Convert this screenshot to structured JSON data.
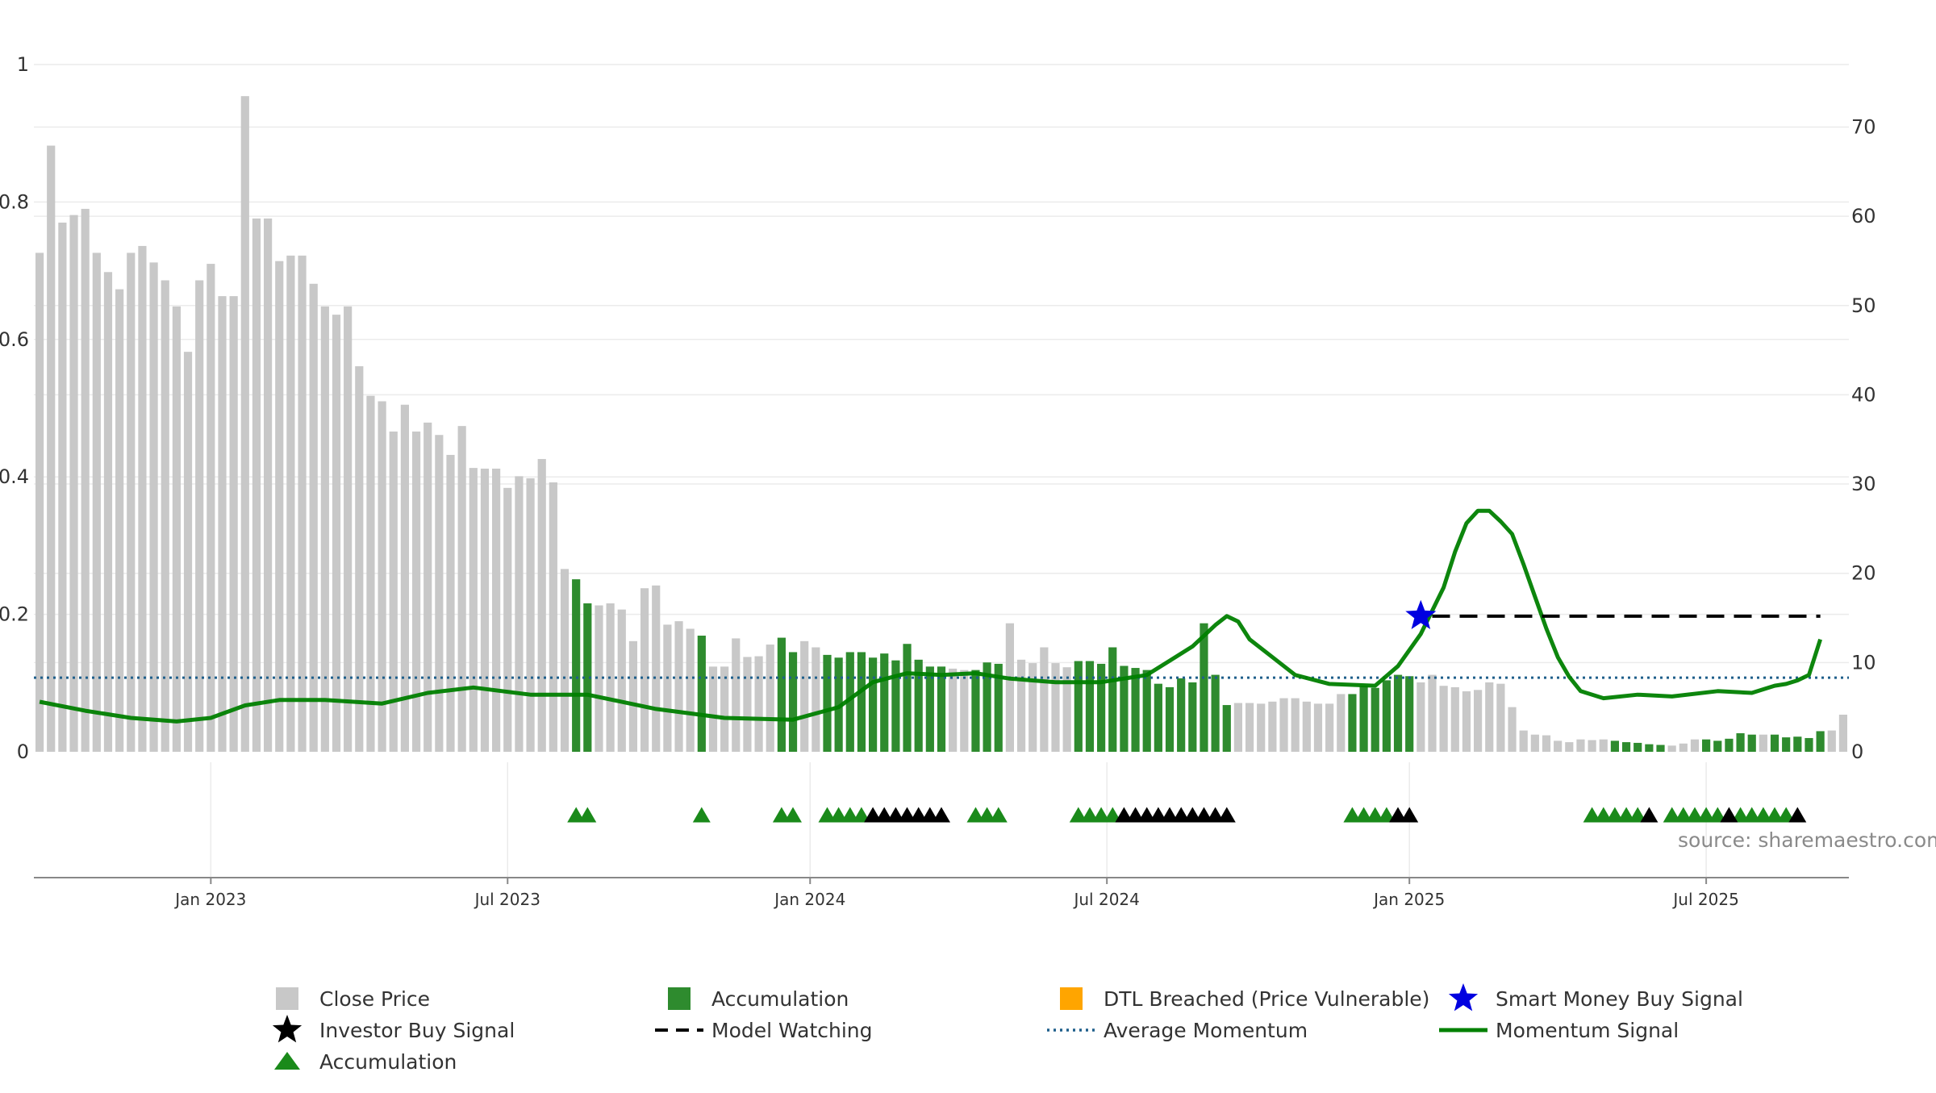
{
  "chart_data": {
    "type": "bar",
    "title": "",
    "xlabel": "",
    "ylabel": "",
    "ylabel_right": "",
    "left_axis": {
      "ticks": [
        "0",
        "0.2",
        "0.4",
        "0.6",
        "0.8",
        "1"
      ],
      "ylim": [
        0,
        1
      ]
    },
    "right_axis": {
      "ticks": [
        "0",
        "10",
        "20",
        "30",
        "40",
        "50",
        "60",
        "70"
      ],
      "ylim": [
        0,
        77
      ]
    },
    "x_axis": {
      "tick_labels": [
        "Jan 2023",
        "Jul 2023",
        "Jan 2024",
        "Jul 2024",
        "Jan 2025",
        "Jul 2025"
      ],
      "tick_index": [
        15,
        41,
        67.5,
        93.5,
        120,
        146
      ]
    },
    "grid": true,
    "legend_placement": "bottom",
    "source": "source: sharemaestro.com",
    "colors": {
      "close_price": "#c8c8c8",
      "accumulation": "#2e8b2e",
      "dtl_breached": "#ffa500",
      "smart_money": "#0000e0",
      "investor_buy": "#000000",
      "model_watching": "#000000",
      "average_momentum": "#1f5f8b",
      "momentum_signal": "#008000"
    },
    "close_price": [
      0.726,
      0.882,
      0.77,
      0.781,
      0.79,
      0.726,
      0.698,
      0.673,
      0.726,
      0.736,
      0.712,
      0.686,
      0.648,
      0.582,
      0.686,
      0.71,
      0.663,
      0.663,
      0.954,
      0.776,
      0.776,
      0.714,
      0.722,
      0.722,
      0.681,
      0.648,
      0.636,
      0.648,
      0.561,
      0.518,
      0.51,
      0.466,
      0.505,
      0.466,
      0.479,
      0.461,
      0.432,
      0.474,
      0.413,
      0.412,
      0.412,
      0.384,
      0.401,
      0.398,
      0.426,
      0.392,
      0.266,
      0.251,
      0.216,
      0.213,
      0.216,
      0.207,
      0.161,
      0.238,
      0.242,
      0.185,
      0.19,
      0.179,
      0.169,
      0.124,
      0.124,
      0.165,
      0.138,
      0.139,
      0.156,
      0.166,
      0.145,
      0.161,
      0.152,
      0.141,
      0.137,
      0.145,
      0.145,
      0.137,
      0.143,
      0.133,
      0.157,
      0.134,
      0.124,
      0.124,
      0.121,
      0.119,
      0.119,
      0.13,
      0.128,
      0.187,
      0.134,
      0.129,
      0.152,
      0.129,
      0.123,
      0.132,
      0.132,
      0.128,
      0.152,
      0.125,
      0.122,
      0.119,
      0.099,
      0.094,
      0.107,
      0.101,
      0.187,
      0.112,
      0.068,
      0.071,
      0.071,
      0.07,
      0.073,
      0.078,
      0.078,
      0.073,
      0.07,
      0.07,
      0.084,
      0.084,
      0.096,
      0.093,
      0.104,
      0.112,
      0.11,
      0.101,
      0.112,
      0.096,
      0.094,
      0.088,
      0.09,
      0.101,
      0.099,
      0.065,
      0.031,
      0.025,
      0.024,
      0.016,
      0.014,
      0.018,
      0.017,
      0.018,
      0.016,
      0.014,
      0.013,
      0.011,
      0.01,
      0.009,
      0.012,
      0.018,
      0.018,
      0.016,
      0.019,
      0.027,
      0.025,
      0.025,
      0.025,
      0.021,
      0.022,
      0.02,
      0.03,
      0.031,
      0.054
    ],
    "accumulation_indices": [
      47,
      48,
      58,
      65,
      66,
      69,
      70,
      71,
      72,
      73,
      74,
      75,
      76,
      77,
      78,
      79,
      82,
      83,
      84,
      91,
      92,
      93,
      94,
      95,
      96,
      97,
      98,
      99,
      100,
      101,
      102,
      103,
      104,
      115,
      116,
      117,
      118,
      119,
      120,
      138,
      139,
      140,
      141,
      142,
      146,
      147,
      148,
      149,
      150,
      152,
      153,
      154,
      155,
      156
    ],
    "average_momentum": 8.3,
    "momentum_signal": {
      "x_index": [
        0,
        4,
        8,
        12,
        15,
        18,
        21,
        25,
        30,
        34,
        38,
        43,
        48,
        54,
        60,
        66,
        70,
        73,
        76,
        79,
        82,
        85,
        89,
        93,
        97,
        99,
        101,
        103,
        104,
        105,
        106,
        108,
        110,
        113,
        117,
        119,
        121,
        123,
        124,
        125,
        126,
        127,
        128,
        129,
        130,
        131,
        132,
        133,
        134,
        135,
        137,
        140,
        143,
        147,
        150,
        152,
        153,
        154,
        155,
        156
      ],
      "values": [
        5.6,
        4.6,
        3.8,
        3.4,
        3.8,
        5.2,
        5.8,
        5.8,
        5.4,
        6.6,
        7.2,
        6.4,
        6.4,
        4.8,
        3.8,
        3.6,
        5.0,
        7.8,
        8.8,
        8.6,
        8.8,
        8.2,
        7.8,
        7.8,
        8.6,
        10.2,
        11.8,
        14.2,
        15.2,
        14.6,
        12.6,
        10.6,
        8.6,
        7.6,
        7.4,
        9.6,
        13.2,
        18.4,
        22.4,
        25.6,
        27.0,
        27.0,
        25.8,
        24.4,
        21.0,
        17.4,
        13.8,
        10.6,
        8.4,
        6.8,
        6.0,
        6.4,
        6.2,
        6.8,
        6.6,
        7.4,
        7.6,
        8.0,
        8.6,
        12.6
      ]
    },
    "smart_money_buy_signal": {
      "x_index": 121,
      "value": 15.2
    },
    "model_watching": {
      "from_index": 122,
      "to_index": 156,
      "value": 15.2
    },
    "accumulation_markers": [
      47,
      48,
      58,
      65,
      66,
      69,
      70,
      71,
      72,
      82,
      83,
      84,
      91,
      92,
      93,
      94,
      115,
      116,
      117,
      118,
      136,
      137,
      138,
      139,
      140,
      143,
      144,
      145,
      146,
      147,
      149,
      150,
      151,
      152,
      153
    ],
    "investor_buy_markers": [
      73,
      74,
      75,
      76,
      77,
      78,
      79,
      95,
      96,
      97,
      98,
      99,
      100,
      101,
      102,
      103,
      104,
      119,
      120,
      141,
      148,
      154
    ],
    "legend": [
      {
        "key": "close_price",
        "label": "Close Price",
        "symbol": "square"
      },
      {
        "key": "accumulation",
        "label": "Accumulation",
        "symbol": "square"
      },
      {
        "key": "dtl_breached",
        "label": "DTL Breached (Price Vulnerable)",
        "symbol": "square"
      },
      {
        "key": "smart_money",
        "label": "Smart Money Buy Signal",
        "symbol": "star"
      },
      {
        "key": "investor_buy",
        "label": "Investor Buy Signal",
        "symbol": "star"
      },
      {
        "key": "model_watching",
        "label": "Model Watching",
        "symbol": "dash"
      },
      {
        "key": "average_momentum",
        "label": "Average Momentum",
        "symbol": "dot"
      },
      {
        "key": "momentum_signal",
        "label": "Momentum Signal",
        "symbol": "line"
      },
      {
        "key": "accumulation_marker",
        "label": "Accumulation",
        "symbol": "triangle"
      }
    ]
  }
}
